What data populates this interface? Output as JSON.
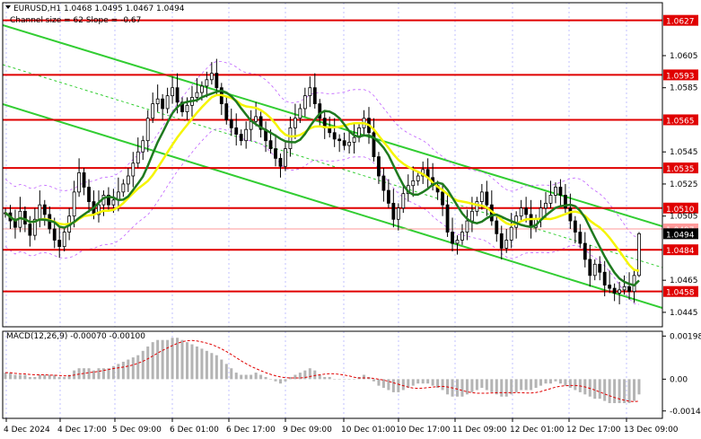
{
  "header": {
    "symbol_line": "EURUSD,H1  1.0468 1.0495 1.0467 1.0494",
    "channel_line": "Channel size = 62 Slope = -0.67"
  },
  "macd_label": "MACD(12,26,9) -0.00070 -0.00100",
  "colors": {
    "background": "#ffffff",
    "grid": "#a9a9ff",
    "channel": "#32cd32",
    "level": "#e00000",
    "ma_fast": "#f5f500",
    "ma_slow": "#1f7a1f",
    "candle": "#000000",
    "envelope": "#c060ff",
    "macd_hist": "#b4b4b4",
    "macd_signal": "#e00000"
  },
  "chart_data": {
    "type": "candlestick",
    "symbol": "EURUSD",
    "timeframe": "H1",
    "ohlc_last": {
      "open": 1.0468,
      "high": 1.0495,
      "low": 1.0467,
      "close": 1.0494
    },
    "ylim": [
      1.0436,
      1.0638
    ],
    "y_ticks": [
      "1.0605",
      "1.0585",
      "1.0545",
      "1.0525",
      "1.0505",
      "1.0465",
      "1.0445"
    ],
    "x_ticks": [
      "4 Dec 2024",
      "4 Dec 17:00",
      "5 Dec 09:00",
      "6 Dec 01:00",
      "6 Dec 17:00",
      "9 Dec 09:00",
      "10 Dec 01:00",
      "10 Dec 17:00",
      "11 Dec 09:00",
      "12 Dec 01:00",
      "12 Dec 17:00",
      "13 Dec 09:00"
    ],
    "levels": [
      {
        "label": "1.0627",
        "value": 1.0627
      },
      {
        "label": "1.0593",
        "value": 1.0593
      },
      {
        "label": "1.0565",
        "value": 1.0565
      },
      {
        "label": "1.0535",
        "value": 1.0535
      },
      {
        "label": "1.0510",
        "value": 1.051
      },
      {
        "label": "1.0484",
        "value": 1.0484
      },
      {
        "label": "1.0458",
        "value": 1.0458
      }
    ],
    "bid_label": "1.0497",
    "current_price_label": "1.0494",
    "channel": {
      "size": 62,
      "slope": -0.67
    },
    "closes": [
      1.0507,
      1.0502,
      1.0498,
      1.0508,
      1.05,
      1.0493,
      1.0503,
      1.0512,
      1.0506,
      1.0497,
      1.049,
      1.0486,
      1.0495,
      1.0505,
      1.052,
      1.0532,
      1.0523,
      1.0514,
      1.0506,
      1.0512,
      1.0518,
      1.0512,
      1.0515,
      1.052,
      1.0525,
      1.053,
      1.0538,
      1.0545,
      1.0552,
      1.0566,
      1.0575,
      1.0578,
      1.0572,
      1.058,
      1.0585,
      1.0576,
      1.057,
      1.0574,
      1.0579,
      1.0582,
      1.0586,
      1.059,
      1.0594,
      1.0585,
      1.0575,
      1.0565,
      1.056,
      1.0556,
      1.0552,
      1.0559,
      1.0564,
      1.0567,
      1.0559,
      1.0552,
      1.0547,
      1.0541,
      1.0536,
      1.0547,
      1.056,
      1.0566,
      1.0572,
      1.058,
      1.0585,
      1.0575,
      1.0566,
      1.056,
      1.0557,
      1.0553,
      1.0552,
      1.0549,
      1.0551,
      1.0554,
      1.056,
      1.0566,
      1.0557,
      1.0542,
      1.053,
      1.0521,
      1.0513,
      1.0503,
      1.051,
      1.0519,
      1.0524,
      1.0527,
      1.053,
      1.0534,
      1.0529,
      1.0524,
      1.052,
      1.0512,
      1.0495,
      1.0488,
      1.049,
      1.0495,
      1.0502,
      1.0508,
      1.0514,
      1.052,
      1.0512,
      1.0502,
      1.0494,
      1.0485,
      1.049,
      1.0498,
      1.0505,
      1.051,
      1.0506,
      1.0498,
      1.0503,
      1.051,
      1.0513,
      1.0518,
      1.0523,
      1.0518,
      1.051,
      1.0502,
      1.0495,
      1.0488,
      1.0478,
      1.0468,
      1.0475,
      1.047,
      1.0462,
      1.046,
      1.0457,
      1.0459,
      1.0461,
      1.0458,
      1.0468,
      1.0494
    ],
    "macd": {
      "label": "MACD(12,26,9)",
      "main": -0.0007,
      "signal": -0.001,
      "y_ticks": [
        "0.00198",
        "0.00",
        "-0.00146"
      ],
      "ylim": [
        -0.0018,
        0.0022
      ],
      "hist": [
        0.0003,
        0.0003,
        0.0002,
        0.0002,
        0.0002,
        0.0001,
        0.0001,
        0.0002,
        0.0002,
        0.0002,
        0.0002,
        0.0001,
        0.0001,
        0.0002,
        0.0004,
        0.0005,
        0.0005,
        0.0005,
        0.0004,
        0.0005,
        0.0005,
        0.0005,
        0.0006,
        0.0007,
        0.0008,
        0.0009,
        0.001,
        0.0011,
        0.0013,
        0.0015,
        0.0017,
        0.0018,
        0.0018,
        0.0018,
        0.0019,
        0.0019,
        0.0018,
        0.0017,
        0.0016,
        0.0015,
        0.0014,
        0.0013,
        0.0012,
        0.0011,
        0.0009,
        0.0007,
        0.0005,
        0.0003,
        0.0002,
        0.0002,
        0.0002,
        0.0003,
        0.0002,
        0.0001,
        0.0,
        -0.0001,
        -0.0002,
        -0.0001,
        0.0001,
        0.0002,
        0.0003,
        0.0004,
        0.0005,
        0.0004,
        0.0002,
        0.0001,
        0.0001,
        0.0,
        0.0,
        0.0,
        0.0,
        0.0,
        0.0001,
        0.0002,
        0.0001,
        -0.0001,
        -0.0003,
        -0.0004,
        -0.0005,
        -0.0006,
        -0.0006,
        -0.0005,
        -0.0004,
        -0.0003,
        -0.0002,
        -0.0002,
        -0.0002,
        -0.0003,
        -0.0004,
        -0.0005,
        -0.0007,
        -0.0008,
        -0.0008,
        -0.0008,
        -0.0007,
        -0.0006,
        -0.0005,
        -0.0004,
        -0.0005,
        -0.0006,
        -0.0007,
        -0.0008,
        -0.0008,
        -0.0007,
        -0.0006,
        -0.0005,
        -0.0005,
        -0.0005,
        -0.0004,
        -0.0003,
        -0.0002,
        -0.0002,
        -0.0001,
        -0.0002,
        -0.0003,
        -0.0004,
        -0.0005,
        -0.0006,
        -0.0007,
        -0.0008,
        -0.0009,
        -0.0009,
        -0.001,
        -0.0011,
        -0.0011,
        -0.0011,
        -0.0011,
        -0.0011,
        -0.001,
        -0.0007
      ]
    }
  }
}
